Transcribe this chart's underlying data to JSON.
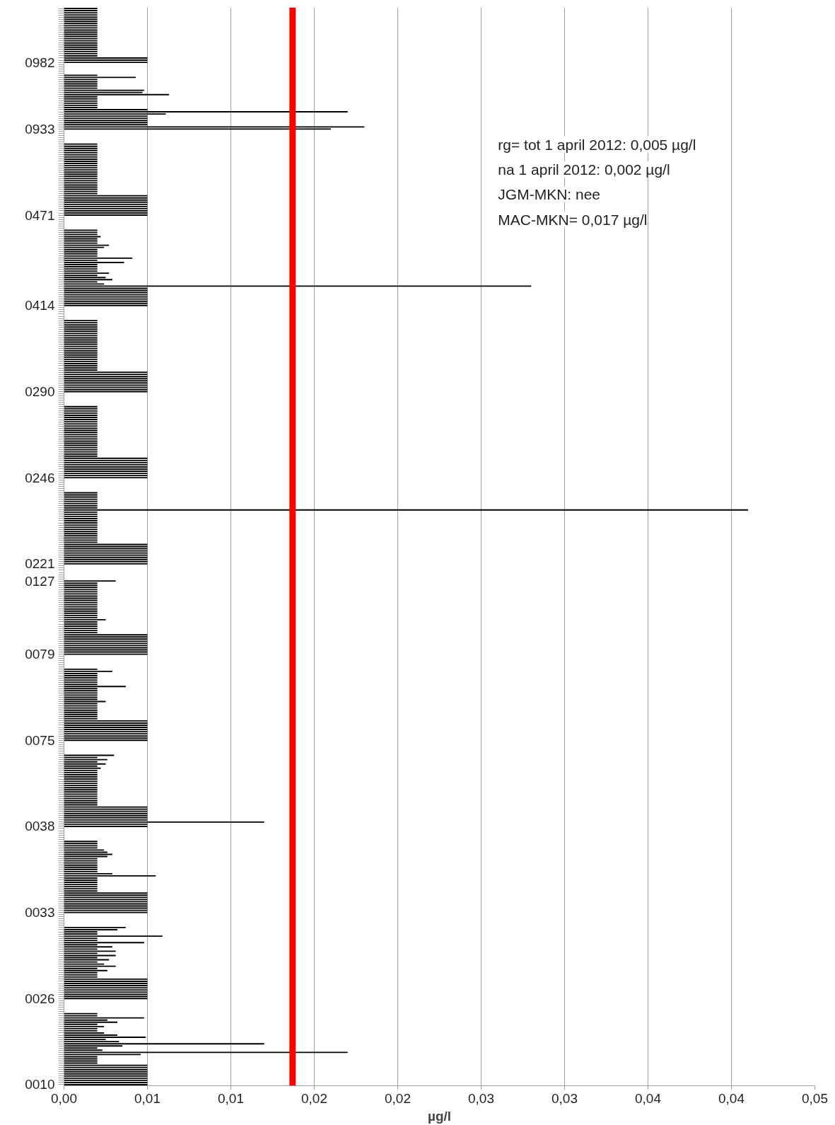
{
  "chart_data": {
    "type": "bar",
    "orientation": "horizontal",
    "xlabel": "µg/l",
    "categories": [
      null,
      null,
      null,
      null,
      null,
      null,
      null,
      null,
      null,
      null,
      null,
      null,
      null,
      null,
      null,
      null,
      null,
      null,
      null,
      null,
      null,
      null,
      null,
      null,
      null,
      "0982",
      null,
      null,
      null,
      null,
      null,
      null,
      null,
      null,
      null,
      null,
      null,
      null,
      null,
      null,
      null,
      null,
      null,
      null,
      null,
      null,
      null,
      null,
      null,
      null,
      null,
      null,
      null,
      null,
      null,
      null,
      "0933",
      null,
      null,
      null,
      null,
      null,
      null,
      null,
      null,
      null,
      null,
      null,
      null,
      null,
      null,
      null,
      null,
      null,
      null,
      null,
      null,
      null,
      null,
      null,
      null,
      null,
      null,
      null,
      null,
      null,
      null,
      null,
      null,
      null,
      null,
      null,
      null,
      null,
      null,
      null,
      "0471",
      null,
      null,
      null,
      null,
      null,
      null,
      null,
      null,
      null,
      null,
      null,
      null,
      null,
      null,
      null,
      null,
      null,
      null,
      null,
      null,
      null,
      null,
      null,
      null,
      null,
      null,
      null,
      null,
      null,
      null,
      null,
      null,
      null,
      null,
      null,
      null,
      null,
      null,
      null,
      null,
      null,
      "0414",
      null,
      null,
      null,
      null,
      null,
      null,
      null,
      null,
      null,
      null,
      null,
      null,
      null,
      null,
      null,
      null,
      null,
      null,
      null,
      null,
      null,
      null,
      null,
      null,
      null,
      null,
      null,
      null,
      null,
      null,
      null,
      null,
      null,
      null,
      null,
      null,
      null,
      null,
      null,
      "0290",
      null,
      null,
      null,
      null,
      null,
      null,
      null,
      null,
      null,
      null,
      null,
      null,
      null,
      null,
      null,
      null,
      null,
      null,
      null,
      null,
      null,
      null,
      null,
      null,
      null,
      null,
      null,
      null,
      null,
      null,
      null,
      null,
      null,
      null,
      null,
      null,
      null,
      null,
      null,
      "0246",
      null,
      null,
      null,
      null,
      null,
      null,
      null,
      null,
      null,
      null,
      null,
      null,
      null,
      null,
      null,
      null,
      null,
      null,
      null,
      null,
      null,
      null,
      null,
      null,
      null,
      null,
      null,
      null,
      null,
      null,
      null,
      null,
      null,
      null,
      null,
      null,
      null,
      null,
      null,
      "0221",
      null,
      null,
      null,
      null,
      null,
      null,
      null,
      "0127",
      null,
      null,
      null,
      null,
      null,
      null,
      null,
      null,
      null,
      null,
      null,
      null,
      null,
      null,
      null,
      null,
      null,
      null,
      null,
      null,
      null,
      null,
      null,
      null,
      null,
      null,
      null,
      null,
      null,
      null,
      null,
      null,
      null,
      "0079",
      null,
      null,
      null,
      null,
      null,
      null,
      null,
      null,
      null,
      null,
      null,
      null,
      null,
      null,
      null,
      null,
      null,
      null,
      null,
      null,
      null,
      null,
      null,
      null,
      null,
      null,
      null,
      null,
      null,
      null,
      null,
      null,
      null,
      null,
      null,
      null,
      null,
      null,
      null,
      "0075",
      null,
      null,
      null,
      null,
      null,
      null,
      null,
      null,
      null,
      null,
      null,
      null,
      null,
      null,
      null,
      null,
      null,
      null,
      null,
      null,
      null,
      null,
      null,
      null,
      null,
      null,
      null,
      null,
      null,
      null,
      null,
      null,
      null,
      null,
      null,
      null,
      null,
      null,
      null,
      "0038",
      null,
      null,
      null,
      null,
      null,
      null,
      null,
      null,
      null,
      null,
      null,
      null,
      null,
      null,
      null,
      null,
      null,
      null,
      null,
      null,
      null,
      null,
      null,
      null,
      null,
      null,
      null,
      null,
      null,
      null,
      null,
      null,
      null,
      null,
      null,
      null,
      null,
      null,
      null,
      "0033",
      null,
      null,
      null,
      null,
      null,
      null,
      null,
      null,
      null,
      null,
      null,
      null,
      null,
      null,
      null,
      null,
      null,
      null,
      null,
      null,
      null,
      null,
      null,
      null,
      null,
      null,
      null,
      null,
      null,
      null,
      null,
      null,
      null,
      null,
      null,
      null,
      null,
      null,
      null,
      "0026",
      null,
      null,
      null,
      null,
      null,
      null,
      null,
      null,
      null,
      null,
      null,
      null,
      null,
      null,
      null,
      null,
      null,
      null,
      null,
      null,
      null,
      null,
      null,
      null,
      null,
      null,
      null,
      null,
      null,
      null,
      null,
      null,
      null,
      null,
      null,
      null,
      null,
      null,
      null,
      "0010"
    ],
    "values": [
      0.002,
      0.002,
      0.002,
      0.002,
      0.002,
      0.002,
      0.002,
      0.002,
      0.002,
      0.002,
      0.002,
      0.002,
      0.002,
      0.002,
      0.002,
      0.002,
      0.002,
      0.002,
      0.002,
      0.002,
      0.002,
      0.002,
      0.002,
      0.005,
      0.005,
      0.005,
      null,
      null,
      null,
      null,
      null,
      0.002,
      0.0043,
      0.002,
      0.002,
      0.002,
      0.002,
      0.002,
      0.0048,
      0.0047,
      0.0063,
      0.002,
      0.002,
      0.002,
      0.002,
      0.002,
      0.002,
      0.005,
      0.017,
      0.0061,
      0.005,
      0.005,
      0.005,
      0.005,
      0.005,
      0.018,
      0.016,
      null,
      null,
      null,
      null,
      null,
      null,
      0.002,
      0.002,
      0.002,
      0.002,
      0.002,
      0.002,
      0.002,
      0.002,
      0.002,
      0.002,
      0.002,
      0.002,
      0.002,
      0.002,
      0.002,
      0.002,
      0.002,
      0.002,
      0.002,
      0.002,
      0.002,
      0.002,
      0.002,
      0.002,
      0.005,
      0.005,
      0.005,
      0.005,
      0.005,
      0.005,
      0.005,
      0.005,
      0.005,
      0.005,
      null,
      null,
      null,
      null,
      null,
      null,
      0.002,
      0.002,
      0.002,
      0.0022,
      0.002,
      0.002,
      0.002,
      0.0027,
      0.0024,
      0.002,
      0.002,
      0.002,
      0.002,
      0.0041,
      0.002,
      0.0036,
      0.002,
      0.002,
      0.002,
      0.002,
      0.0027,
      0.002,
      0.0025,
      0.0029,
      0.002,
      0.0024,
      0.028,
      0.005,
      0.005,
      0.005,
      0.005,
      0.005,
      0.005,
      0.005,
      0.005,
      0.005,
      null,
      null,
      null,
      null,
      null,
      null,
      0.002,
      0.002,
      0.002,
      0.002,
      0.002,
      0.002,
      0.002,
      0.002,
      0.002,
      0.002,
      0.002,
      0.002,
      0.002,
      0.002,
      0.002,
      0.002,
      0.002,
      0.002,
      0.002,
      0.002,
      0.002,
      0.002,
      0.002,
      0.002,
      0.005,
      0.005,
      0.005,
      0.005,
      0.005,
      0.005,
      0.005,
      0.005,
      0.005,
      0.005,
      null,
      null,
      null,
      null,
      null,
      null,
      0.002,
      0.002,
      0.002,
      0.002,
      0.002,
      0.002,
      0.002,
      0.002,
      0.002,
      0.002,
      0.002,
      0.002,
      0.002,
      0.002,
      0.002,
      0.002,
      0.002,
      0.002,
      0.002,
      0.002,
      0.002,
      0.002,
      0.002,
      0.002,
      0.005,
      0.005,
      0.005,
      0.005,
      0.005,
      0.005,
      0.005,
      0.005,
      0.005,
      0.005,
      null,
      null,
      null,
      null,
      null,
      null,
      0.002,
      0.002,
      0.002,
      0.002,
      0.002,
      0.002,
      0.002,
      0.002,
      0.041,
      0.002,
      0.002,
      0.002,
      0.002,
      0.002,
      0.002,
      0.002,
      0.002,
      0.002,
      0.002,
      0.002,
      0.002,
      0.002,
      0.002,
      0.002,
      0.005,
      0.005,
      0.005,
      0.005,
      0.005,
      0.005,
      0.005,
      0.005,
      0.005,
      0.005,
      null,
      null,
      null,
      null,
      null,
      null,
      null,
      0.0031,
      0.002,
      0.002,
      0.002,
      0.002,
      0.002,
      0.002,
      0.002,
      0.002,
      0.002,
      0.002,
      0.002,
      0.002,
      0.002,
      0.002,
      0.002,
      0.002,
      0.002,
      0.0025,
      0.002,
      0.002,
      0.002,
      0.002,
      0.002,
      0.002,
      0.005,
      0.005,
      0.005,
      0.005,
      0.005,
      0.005,
      0.005,
      0.005,
      0.005,
      0.005,
      null,
      null,
      null,
      null,
      null,
      null,
      0.002,
      0.0029,
      0.002,
      0.002,
      0.002,
      0.002,
      0.002,
      0.002,
      0.0037,
      0.002,
      0.002,
      0.002,
      0.002,
      0.002,
      0.002,
      0.0025,
      0.002,
      0.002,
      0.002,
      0.002,
      0.002,
      0.002,
      0.002,
      0.002,
      0.005,
      0.005,
      0.005,
      0.005,
      0.005,
      0.005,
      0.005,
      0.005,
      0.005,
      0.005,
      null,
      null,
      null,
      null,
      null,
      null,
      0.003,
      0.002,
      0.0026,
      0.002,
      0.0025,
      0.002,
      0.0022,
      0.002,
      0.002,
      0.002,
      0.002,
      0.002,
      0.002,
      0.002,
      0.002,
      0.002,
      0.002,
      0.002,
      0.002,
      0.002,
      0.002,
      0.002,
      0.002,
      0.002,
      0.005,
      0.005,
      0.005,
      0.005,
      0.005,
      0.005,
      0.005,
      0.012,
      0.005,
      0.005,
      null,
      null,
      null,
      null,
      null,
      null,
      0.002,
      0.002,
      0.002,
      0.002,
      0.0024,
      0.0026,
      0.0029,
      0.0026,
      0.002,
      0.002,
      0.002,
      0.002,
      0.002,
      0.002,
      0.002,
      0.0029,
      0.0055,
      0.002,
      0.002,
      0.002,
      0.002,
      0.002,
      0.002,
      0.002,
      0.005,
      0.005,
      0.005,
      0.005,
      0.005,
      0.005,
      0.005,
      0.005,
      0.005,
      0.005,
      null,
      null,
      null,
      null,
      null,
      null,
      0.0037,
      0.0032,
      0.002,
      0.002,
      0.0059,
      0.002,
      0.002,
      0.0048,
      0.002,
      0.0029,
      0.002,
      0.0031,
      0.002,
      0.0031,
      0.002,
      0.0027,
      0.002,
      0.0024,
      0.0031,
      0.002,
      0.0026,
      0.002,
      0.002,
      0.002,
      0.005,
      0.005,
      0.005,
      0.005,
      0.005,
      0.005,
      0.005,
      0.005,
      0.005,
      0.005,
      null,
      null,
      null,
      null,
      null,
      null,
      0.002,
      0.002,
      0.0048,
      0.0026,
      0.0032,
      0.002,
      0.0024,
      0.002,
      0.002,
      0.0024,
      0.0032,
      0.0049,
      0.0025,
      0.0033,
      0.012,
      0.0035,
      0.002,
      0.0023,
      0.017,
      0.0046,
      0.002,
      0.002,
      0.002,
      0.002,
      0.005,
      0.005,
      0.005,
      0.005,
      0.005,
      0.005,
      0.005,
      0.005,
      0.005,
      0.005
    ],
    "color": "#000000",
    "xlim": [
      0,
      0.045
    ],
    "xticks": [
      {
        "value": 0,
        "label": "0,00"
      },
      {
        "value": 0.005,
        "label": "0,01"
      },
      {
        "value": 0.01,
        "label": "0,01"
      },
      {
        "value": 0.015,
        "label": "0,02"
      },
      {
        "value": 0.02,
        "label": "0,02"
      },
      {
        "value": 0.025,
        "label": "0,03"
      },
      {
        "value": 0.03,
        "label": "0,03"
      },
      {
        "value": 0.035,
        "label": "0,04"
      },
      {
        "value": 0.04,
        "label": "0,04"
      },
      {
        "value": 0.045,
        "label": "0,05"
      }
    ],
    "grid": "x",
    "ref_lines": [
      {
        "axis": "x",
        "value": 0.0137,
        "color": "#ff0000"
      }
    ],
    "annotations": [
      "rg= tot 1 april 2012: 0,005 µg/l",
      "na 1 april 2012: 0,002 µg/l",
      "JGM-MKN: nee",
      "MAC-MKN= 0,017 µg/l"
    ]
  }
}
